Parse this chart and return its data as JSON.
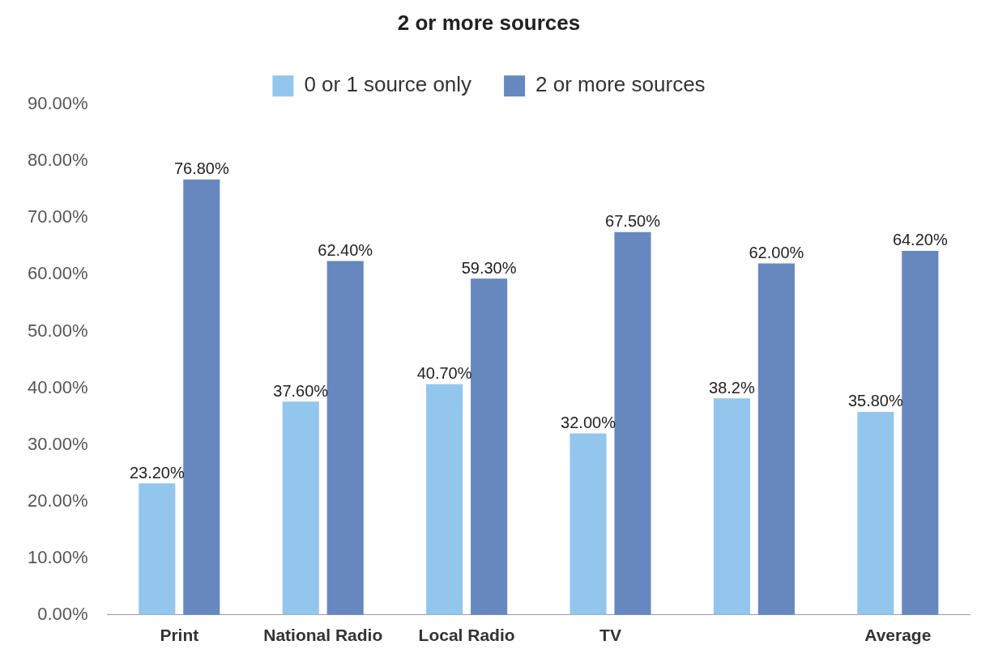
{
  "chart_data": {
    "type": "bar",
    "title": "2 or more sources",
    "categories": [
      "Print",
      "National Radio",
      "Local Radio",
      "TV",
      null,
      "Average"
    ],
    "series": [
      {
        "name": "0 or 1 source only",
        "color": "#93c6ec",
        "values": [
          23.2,
          37.6,
          40.7,
          32.0,
          38.2,
          35.8
        ],
        "value_labels": [
          "23.20%",
          "37.60%",
          "40.70%",
          "32.00%",
          "38.2%",
          "35.80%"
        ]
      },
      {
        "name": "2 or more sources",
        "color": "#6688bf",
        "values": [
          76.8,
          62.4,
          59.3,
          67.5,
          62.0,
          64.2
        ],
        "value_labels": [
          "76.80%",
          "62.40%",
          "59.30%",
          "67.50%",
          "62.00%",
          "64.20%"
        ]
      }
    ],
    "ylim": [
      0,
      90
    ],
    "yticks": [
      {
        "value": 0,
        "label": "0.00%"
      },
      {
        "value": 10,
        "label": "10.00%"
      },
      {
        "value": 20,
        "label": "20.00%"
      },
      {
        "value": 30,
        "label": "30.00%"
      },
      {
        "value": 40,
        "label": "40.00%"
      },
      {
        "value": 50,
        "label": "50.00%"
      },
      {
        "value": 60,
        "label": "60.00%"
      },
      {
        "value": 70,
        "label": "70.00%"
      },
      {
        "value": 80,
        "label": "80.00%"
      },
      {
        "value": 90,
        "label": "90.00%"
      }
    ],
    "grid": false,
    "legend": "top"
  }
}
